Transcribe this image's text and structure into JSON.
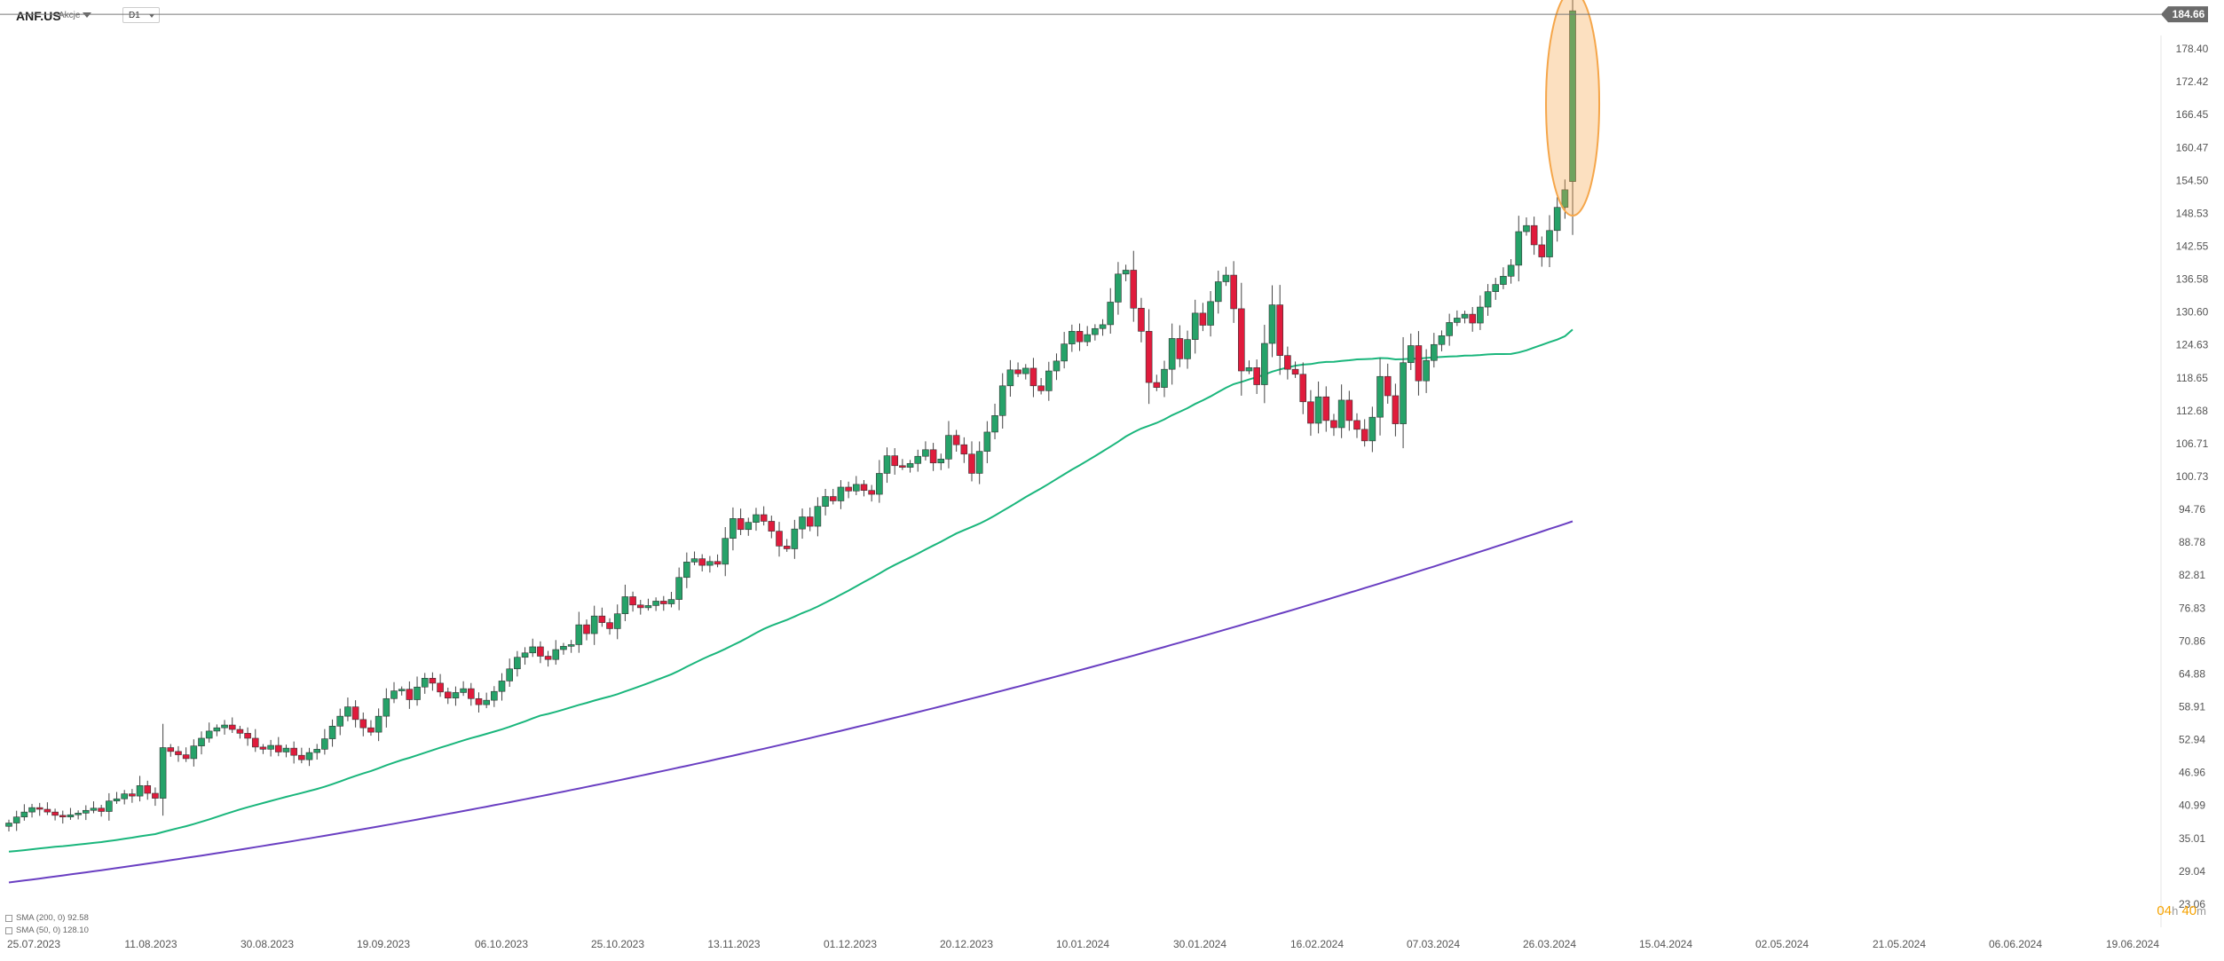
{
  "header": {
    "symbol": "ANF.US",
    "symbol_type": "Akcje",
    "timeframe": "D1"
  },
  "legend": {
    "sma200": "SMA (200, 0) 92.58",
    "sma50": "SMA (50, 0) 128.10"
  },
  "countdown": {
    "hours": "04",
    "hours_unit": "h",
    "minutes": "40",
    "minutes_unit": "m"
  },
  "colors": {
    "up": "#26a269",
    "down": "#e01b3c",
    "sma50": "#1ab67c",
    "sma200": "#6a3fc2",
    "highlight": "#f5a64a",
    "price_line": "#777777",
    "price_label_bg": "#6b6b6b"
  },
  "chart_data": {
    "type": "candlestick",
    "title": "",
    "ylim": [
      23.06,
      190.0
    ],
    "y_ticks": [
      23.06,
      29.04,
      35.01,
      40.99,
      46.96,
      52.94,
      58.91,
      64.88,
      70.86,
      76.83,
      82.81,
      88.78,
      94.76,
      100.73,
      106.71,
      112.68,
      118.65,
      124.63,
      130.6,
      136.58,
      142.55,
      148.53,
      154.5,
      160.47,
      166.45,
      172.42,
      178.4
    ],
    "y_tick_labels": [
      "23.06",
      "29.04",
      "35.01",
      "40.99",
      "46.96",
      "52.94",
      "58.91",
      "64.88",
      "70.86",
      "76.83",
      "82.81",
      "88.78",
      "94.76",
      "100.73",
      "106.71",
      "112.68",
      "118.65",
      "124.63",
      "130.60",
      "136.58",
      "142.55",
      "148.53",
      "154.50",
      "160.47",
      "166.45",
      "172.42",
      "178.40"
    ],
    "x_tick_labels": [
      "25.07.2023",
      "11.08.2023",
      "30.08.2023",
      "19.09.2023",
      "06.10.2023",
      "25.10.2023",
      "13.11.2023",
      "01.12.2023",
      "20.12.2023",
      "10.01.2024",
      "30.01.2024",
      "16.02.2024",
      "07.03.2024",
      "26.03.2024",
      "15.04.2024",
      "02.05.2024",
      "21.05.2024",
      "06.06.2024",
      "19.06.2024"
    ],
    "current_price": 184.66,
    "current_price_label": "184.66",
    "closes": [
      37.8,
      38.9,
      39.8,
      40.6,
      40.3,
      39.8,
      39.2,
      38.9,
      39.3,
      39.6,
      40.1,
      40.5,
      39.9,
      41.8,
      42.2,
      43.1,
      42.7,
      44.6,
      43.2,
      42.3,
      51.5,
      50.8,
      50.2,
      49.5,
      51.8,
      53.2,
      54.5,
      55.1,
      55.6,
      54.8,
      54.1,
      53.2,
      51.6,
      51.2,
      51.9,
      50.7,
      51.4,
      50.1,
      49.3,
      50.6,
      51.2,
      53.1,
      55.4,
      57.2,
      58.9,
      56.6,
      55.1,
      54.3,
      57.2,
      60.4,
      61.8,
      62.1,
      60.2,
      62.5,
      64.1,
      63.2,
      61.6,
      60.5,
      61.5,
      62.2,
      60.4,
      59.3,
      60.1,
      61.7,
      63.6,
      65.8,
      67.9,
      68.7,
      69.8,
      68.1,
      67.5,
      69.3,
      69.9,
      70.2,
      73.8,
      72.2,
      75.4,
      74.2,
      73.1,
      75.8,
      78.9,
      77.4,
      76.9,
      77.3,
      78.1,
      77.6,
      78.4,
      82.4,
      85.2,
      85.8,
      84.6,
      85.3,
      84.8,
      89.5,
      93.1,
      91.1,
      92.4,
      93.8,
      92.6,
      90.8,
      88.1,
      87.6,
      91.2,
      93.4,
      91.7,
      95.3,
      97.1,
      96.3,
      98.8,
      98.1,
      99.3,
      98.2,
      97.5,
      101.3,
      104.5,
      102.7,
      102.4,
      103.1,
      104.4,
      105.6,
      103.2,
      103.9,
      108.2,
      106.5,
      104.8,
      101.3,
      105.3,
      108.8,
      111.8,
      117.2,
      120.1,
      119.4,
      120.4,
      117.2,
      116.3,
      119.9,
      121.7,
      124.8,
      127.1,
      125.2,
      126.5,
      127.6,
      128.3,
      132.4,
      137.5,
      138.2,
      131.3,
      127.1,
      117.8,
      116.9,
      120.2,
      125.8,
      122.1,
      125.6,
      130.4,
      128.2,
      132.5,
      136.1,
      137.3,
      131.2,
      119.9,
      120.5,
      117.4,
      124.9,
      131.9,
      122.7,
      120.2,
      119.3,
      114.3,
      110.4,
      115.2,
      110.9,
      109.6,
      114.6,
      110.9,
      109.3,
      107.2,
      111.5,
      118.9,
      115.4,
      110.3,
      121.4,
      124.5,
      118.1,
      121.8,
      124.7,
      126.3,
      128.7,
      129.5,
      130.2,
      128.6,
      131.5,
      134.3,
      135.6,
      137.1,
      139.1,
      145.2,
      146.3,
      142.8,
      140.6,
      145.4,
      149.6,
      152.8,
      185.3
    ]
  }
}
